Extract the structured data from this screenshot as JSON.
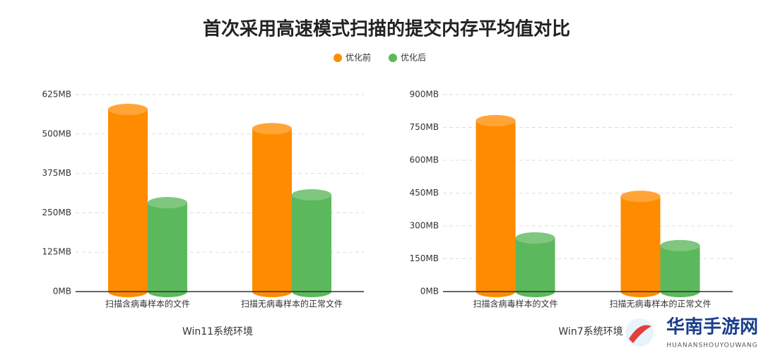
{
  "title": "首次采用高速模式扫描的提交内存平均值对比",
  "chart_data": [
    {
      "type": "bar",
      "xlabel": "Win11系统环境",
      "categories": [
        "扫描含病毒样本的文件",
        "扫描无病毒样本的正常文件"
      ],
      "series": [
        {
          "name": "优化前",
          "color": "#ff8c00",
          "values": [
            578,
            517
          ]
        },
        {
          "name": "优化后",
          "color": "#5cb85c",
          "values": [
            282,
            307
          ]
        }
      ],
      "ylim": [
        0,
        625
      ],
      "yticks": [
        {
          "value": 0,
          "label": "0MB"
        },
        {
          "value": 125,
          "label": "125MB"
        },
        {
          "value": 250,
          "label": "250MB"
        },
        {
          "value": 375,
          "label": "375MB"
        },
        {
          "value": 500,
          "label": "500MB"
        },
        {
          "value": 625,
          "label": "625MB"
        }
      ],
      "grid": true,
      "legend": "top"
    },
    {
      "type": "bar",
      "xlabel": "Win7系统环境",
      "categories": [
        "扫描含病毒样本的文件",
        "扫描无病毒样本的正常文件"
      ],
      "series": [
        {
          "name": "优化前",
          "color": "#ff8c00",
          "values": [
            781,
            435
          ]
        },
        {
          "name": "优化后",
          "color": "#5cb85c",
          "values": [
            245,
            210
          ]
        }
      ],
      "ylim": [
        0,
        900
      ],
      "yticks": [
        {
          "value": 0,
          "label": "0MB"
        },
        {
          "value": 150,
          "label": "150MB"
        },
        {
          "value": 300,
          "label": "300MB"
        },
        {
          "value": 450,
          "label": "450MB"
        },
        {
          "value": 600,
          "label": "600MB"
        },
        {
          "value": 750,
          "label": "750MB"
        },
        {
          "value": 900,
          "label": "900MB"
        }
      ],
      "grid": true
    }
  ],
  "watermark": {
    "name": "华南手游网",
    "url": "HUANANSHOUYOUWANG"
  }
}
